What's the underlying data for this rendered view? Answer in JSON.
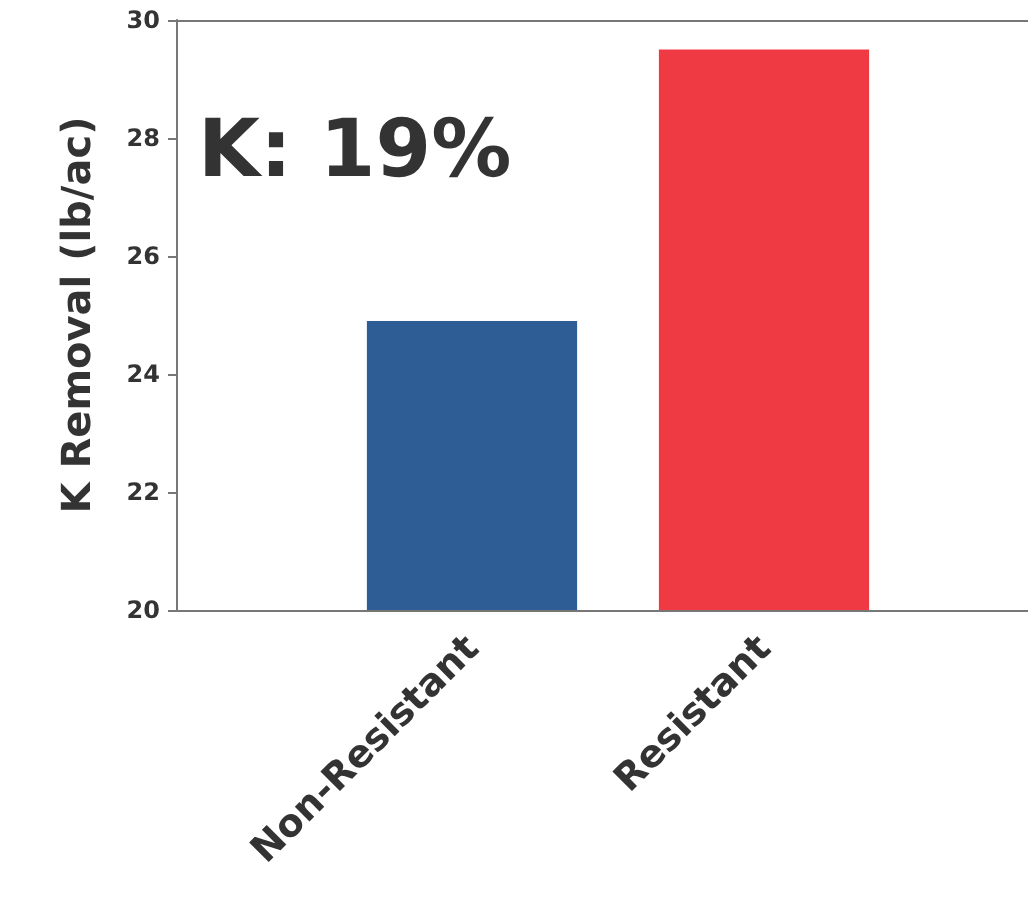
{
  "chart_data": {
    "type": "bar",
    "ylabel": "K Removal (lb/ac)",
    "categories": [
      "Non-Resistant",
      "Resistant"
    ],
    "values": [
      24.9,
      29.5
    ],
    "colors": [
      "#2e5c94",
      "#f03a43"
    ],
    "ylim": [
      20,
      30
    ],
    "yticks": [
      20,
      22,
      24,
      26,
      28,
      30
    ],
    "annotations": [
      "K: 19%"
    ]
  }
}
